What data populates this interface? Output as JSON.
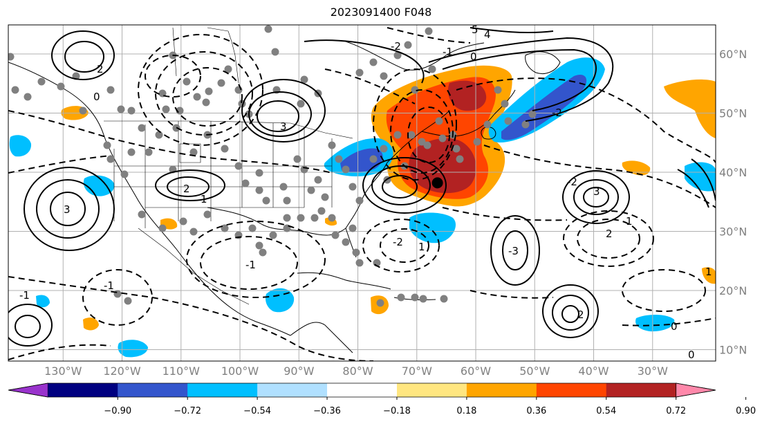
{
  "title": "2023091400 F048",
  "map": {
    "lon_labels": [
      "130°W",
      "120°W",
      "110°W",
      "100°W",
      "90°W",
      "80°W",
      "70°W",
      "60°W",
      "50°W",
      "40°W",
      "30°W"
    ],
    "lat_labels": [
      "60°N",
      "50°N",
      "40°N",
      "30°N",
      "20°N",
      "10°N"
    ],
    "contour_labels": [
      "2",
      "0",
      "3",
      "2",
      "1",
      "-1",
      "-2",
      "1",
      "5",
      "4",
      "-2",
      "0",
      "-1",
      "3",
      "2",
      "-2",
      "1",
      "-1",
      "0",
      "-1",
      "3",
      "-3",
      "-2",
      "2",
      "1",
      "0"
    ],
    "storm_marker": {
      "lon": -66.5,
      "lat": 38.2
    },
    "colors": {
      "land_outline": "#000000",
      "grid": "#b0b0b0",
      "station_dots": "#808080"
    }
  },
  "colorbar": {
    "tick_labels": [
      "−0.90",
      "−0.72",
      "−0.54",
      "−0.36",
      "−0.18",
      "0.18",
      "0.36",
      "0.54",
      "0.72",
      "0.90"
    ],
    "colors": [
      "#9933cc",
      "#000080",
      "#3355cc",
      "#00bfff",
      "#b0e0ff",
      "#ffffff",
      "#ffe680",
      "#ffa500",
      "#ff4500",
      "#b22222",
      "#ff88aa"
    ]
  }
}
